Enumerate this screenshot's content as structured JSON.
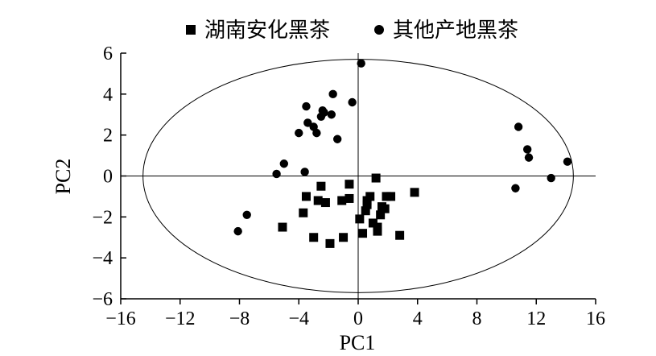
{
  "chart_data": {
    "type": "scatter",
    "xlabel": "PC1",
    "ylabel": "PC2",
    "xlim": [
      -16,
      16
    ],
    "ylim": [
      -6,
      6
    ],
    "xticks": [
      -16,
      -12,
      -8,
      -4,
      0,
      4,
      8,
      12,
      16
    ],
    "yticks": [
      -6,
      -4,
      -2,
      0,
      2,
      4,
      6
    ],
    "xtick_labels": [
      "−16",
      "−12",
      "−8",
      "−4",
      "0",
      "4",
      "8",
      "12",
      "16"
    ],
    "ytick_labels": [
      "−6",
      "−4",
      "−2",
      "0",
      "2",
      "4",
      "6"
    ],
    "legend_position": "top",
    "grid": false,
    "confidence_ellipse": {
      "center": [
        0,
        0
      ],
      "radius_x": 14.5,
      "radius_y": 5.7
    },
    "series": [
      {
        "name": "湖南安化黑茶",
        "marker": "square",
        "points": [
          [
            -3.5,
            -1.0
          ],
          [
            -3.7,
            -1.8
          ],
          [
            -2.5,
            -0.5
          ],
          [
            -2.7,
            -1.2
          ],
          [
            -2.2,
            -1.3
          ],
          [
            -5.1,
            -2.5
          ],
          [
            -3.0,
            -3.0
          ],
          [
            -1.9,
            -3.3
          ],
          [
            -1.0,
            -3.0
          ],
          [
            -1.1,
            -1.2
          ],
          [
            -0.6,
            -0.4
          ],
          [
            -0.6,
            -1.1
          ],
          [
            0.1,
            -2.1
          ],
          [
            0.3,
            -2.8
          ],
          [
            0.6,
            -1.2
          ],
          [
            0.8,
            -1.0
          ],
          [
            0.6,
            -1.4
          ],
          [
            0.5,
            -1.7
          ],
          [
            1.0,
            -2.3
          ],
          [
            1.3,
            -2.5
          ],
          [
            1.3,
            -2.7
          ],
          [
            1.5,
            -1.9
          ],
          [
            1.6,
            -1.5
          ],
          [
            1.8,
            -1.6
          ],
          [
            1.9,
            -1.0
          ],
          [
            2.2,
            -1.0
          ],
          [
            1.2,
            -0.1
          ],
          [
            2.8,
            -2.9
          ],
          [
            3.8,
            -0.8
          ]
        ]
      },
      {
        "name": "其他产地黑茶",
        "marker": "circle",
        "points": [
          [
            0.2,
            5.5
          ],
          [
            -1.7,
            4.0
          ],
          [
            -0.4,
            3.6
          ],
          [
            -3.5,
            3.4
          ],
          [
            -2.4,
            3.2
          ],
          [
            -2.3,
            3.1
          ],
          [
            -2.5,
            2.9
          ],
          [
            -1.8,
            3.0
          ],
          [
            -3.4,
            2.6
          ],
          [
            -3.0,
            2.4
          ],
          [
            -4.0,
            2.1
          ],
          [
            -2.8,
            2.1
          ],
          [
            -1.4,
            1.8
          ],
          [
            -5.0,
            0.6
          ],
          [
            -5.5,
            0.1
          ],
          [
            -3.6,
            0.2
          ],
          [
            -7.5,
            -1.9
          ],
          [
            -8.1,
            -2.7
          ],
          [
            10.8,
            2.4
          ],
          [
            11.4,
            1.3
          ],
          [
            11.5,
            0.9
          ],
          [
            14.1,
            0.7
          ],
          [
            13.0,
            -0.1
          ],
          [
            10.6,
            -0.6
          ]
        ]
      }
    ]
  }
}
